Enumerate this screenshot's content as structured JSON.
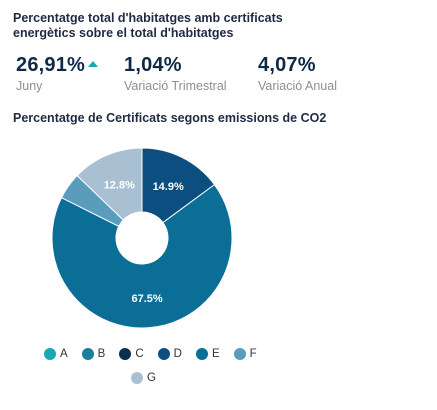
{
  "header": {
    "title": "Percentatge total d'habitatges amb certificats energètics sobre el total d'habitatges"
  },
  "kpis": [
    {
      "value": "26,91%",
      "label": "Juny",
      "trend": "up"
    },
    {
      "value": "1,04%",
      "label": "Variació Trimestral"
    },
    {
      "value": "4,07%",
      "label": "Variació Anual"
    }
  ],
  "colors": {
    "A": "#1aa7b5",
    "B": "#1a7f9a",
    "C": "#0a2f55",
    "D": "#0c4e80",
    "E": "#0b6e97",
    "F": "#5a9cbc",
    "G": "#a9c0d2",
    "up_arrow": "#1aa7b5"
  },
  "chart_data": {
    "type": "pie",
    "donut": true,
    "title": "Percentatge de Certificats segons emissions de CO2",
    "legend_position": "bottom",
    "slices": [
      {
        "label": "A",
        "value": 0,
        "data_label": ""
      },
      {
        "label": "B",
        "value": 0,
        "data_label": ""
      },
      {
        "label": "C",
        "value": 0,
        "data_label": ""
      },
      {
        "label": "D",
        "value": 14.9,
        "data_label": "14.9%"
      },
      {
        "label": "E",
        "value": 67.5,
        "data_label": "67.5%"
      },
      {
        "label": "F",
        "value": 4.8,
        "data_label": ""
      },
      {
        "label": "G",
        "value": 12.8,
        "data_label": "12.8%"
      }
    ]
  }
}
